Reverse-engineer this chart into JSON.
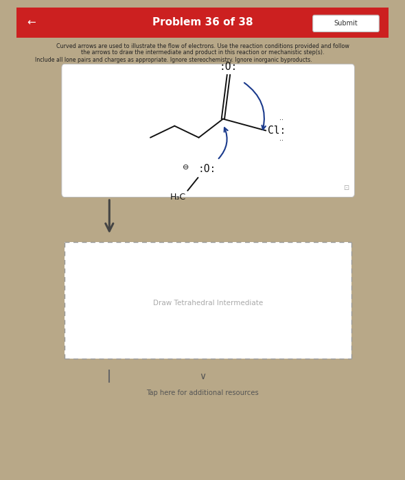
{
  "title": "Problem 36 of 38",
  "title_bg": "#cc2020",
  "title_color": "#ffffff",
  "submit_btn_text": "Submit",
  "outer_bg": "#b8a888",
  "inner_bg": "#e0ddd8",
  "card_bg": "#ffffff",
  "instruction_line1": "Curved arrows are used to illustrate the flow of electrons. Use the reaction conditions provided and follow",
  "instruction_line2": "the arrows to draw the intermediate and product in this reaction or mechanistic step(s).",
  "instruction_line3": "Include all lone pairs and charges as appropriate. Ignore stereochemistry. Ignore inorganic byproducts.",
  "draw_label": "Draw Tetrahedral Intermediate",
  "tap_label": "Tap here for additional resources",
  "arrow_color": "#333333",
  "molecule_color": "#111111",
  "curved_arrow_color": "#1a3a8c",
  "mol_box_bg": "#f5f5f5",
  "dashed_box_bg": "#f5f5f5"
}
